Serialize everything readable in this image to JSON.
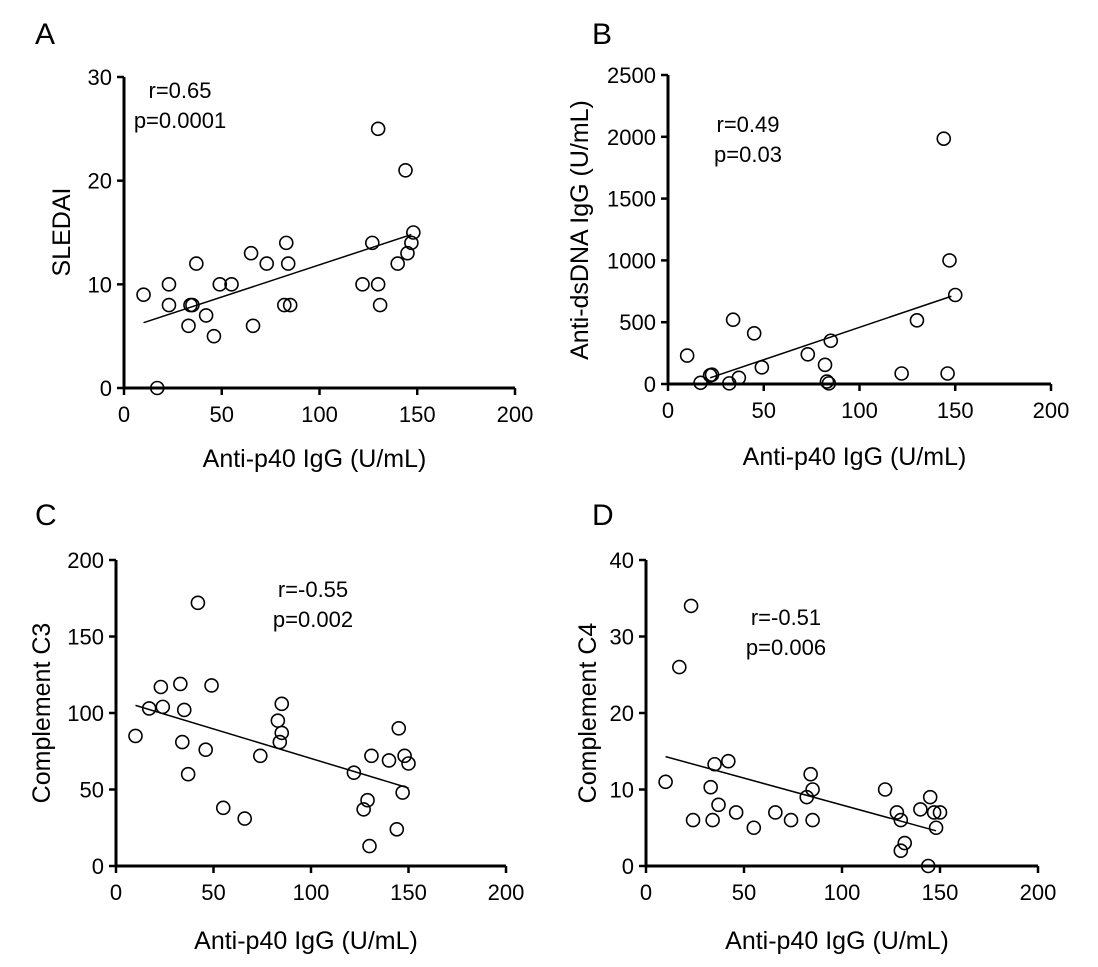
{
  "chart_data": [
    {
      "panel": "A",
      "type": "scatter",
      "xlabel": "Anti-p40 IgG (U/mL)",
      "ylabel": "SLEDAI",
      "xlim": [
        0,
        200
      ],
      "ylim": [
        0,
        30
      ],
      "xticks": [
        0,
        50,
        100,
        150,
        200
      ],
      "yticks": [
        0,
        10,
        20,
        30
      ],
      "annotation": [
        "r=0.65",
        "p=0.0001"
      ],
      "points": [
        [
          10,
          9
        ],
        [
          17,
          0
        ],
        [
          23,
          10
        ],
        [
          23,
          8
        ],
        [
          33,
          6
        ],
        [
          34,
          8
        ],
        [
          35,
          8
        ],
        [
          37,
          12
        ],
        [
          42,
          7
        ],
        [
          46,
          5
        ],
        [
          49,
          10
        ],
        [
          55,
          10
        ],
        [
          65,
          13
        ],
        [
          66,
          6
        ],
        [
          73,
          12
        ],
        [
          82,
          8
        ],
        [
          83,
          14
        ],
        [
          84,
          12
        ],
        [
          85,
          8
        ],
        [
          122,
          10
        ],
        [
          127,
          14
        ],
        [
          130,
          10
        ],
        [
          130,
          25
        ],
        [
          131,
          8
        ],
        [
          140,
          12
        ],
        [
          144,
          21
        ],
        [
          145,
          13
        ],
        [
          147,
          14
        ],
        [
          148,
          15
        ]
      ],
      "fit_line": [
        [
          10,
          6.3
        ],
        [
          147,
          14.8
        ]
      ]
    },
    {
      "panel": "B",
      "type": "scatter",
      "xlabel": "Anti-p40 IgG (U/mL)",
      "ylabel": "Anti-dsDNA IgG (U/mL)",
      "xlim": [
        0,
        200
      ],
      "ylim": [
        0,
        2500
      ],
      "xticks": [
        0,
        50,
        100,
        150,
        200
      ],
      "yticks": [
        0,
        500,
        1000,
        1500,
        2000,
        2500
      ],
      "annotation": [
        "r=0.49",
        "p=0.03"
      ],
      "points": [
        [
          10,
          230
        ],
        [
          17,
          10
        ],
        [
          22,
          70
        ],
        [
          23,
          75
        ],
        [
          32,
          5
        ],
        [
          34,
          520
        ],
        [
          37,
          50
        ],
        [
          45,
          410
        ],
        [
          49,
          135
        ],
        [
          73,
          240
        ],
        [
          82,
          155
        ],
        [
          83,
          20
        ],
        [
          84,
          5
        ],
        [
          85,
          350
        ],
        [
          122,
          85
        ],
        [
          130,
          515
        ],
        [
          144,
          1985
        ],
        [
          146,
          85
        ],
        [
          147,
          1000
        ],
        [
          150,
          720
        ]
      ],
      "fit_line": [
        [
          22,
          50
        ],
        [
          148,
          710
        ]
      ]
    },
    {
      "panel": "C",
      "type": "scatter",
      "xlabel": "Anti-p40 IgG (U/mL)",
      "ylabel": "Complement C3",
      "xlim": [
        0,
        200
      ],
      "ylim": [
        0,
        200
      ],
      "xticks": [
        0,
        50,
        100,
        150,
        200
      ],
      "yticks": [
        0,
        50,
        100,
        150,
        200
      ],
      "annotation": [
        "r=-0.55",
        "p=0.002"
      ],
      "points": [
        [
          10,
          85
        ],
        [
          17,
          103
        ],
        [
          23,
          117
        ],
        [
          24,
          104
        ],
        [
          33,
          119
        ],
        [
          34,
          81
        ],
        [
          35,
          102
        ],
        [
          37,
          60
        ],
        [
          42,
          172
        ],
        [
          46,
          76
        ],
        [
          49,
          118
        ],
        [
          55,
          38
        ],
        [
          66,
          31
        ],
        [
          74,
          72
        ],
        [
          83,
          95
        ],
        [
          84,
          81
        ],
        [
          85,
          106
        ],
        [
          85,
          87
        ],
        [
          122,
          61
        ],
        [
          127,
          37
        ],
        [
          129,
          43
        ],
        [
          130,
          13
        ],
        [
          131,
          72
        ],
        [
          140,
          69
        ],
        [
          145,
          90
        ],
        [
          144,
          24
        ],
        [
          147,
          48
        ],
        [
          148,
          72
        ],
        [
          150,
          67
        ]
      ],
      "fit_line": [
        [
          10,
          105
        ],
        [
          150,
          51
        ]
      ]
    },
    {
      "panel": "D",
      "type": "scatter",
      "xlabel": "Anti-p40 IgG (U/mL)",
      "ylabel": "Complement C4",
      "xlim": [
        0,
        200
      ],
      "ylim": [
        0,
        40
      ],
      "xticks": [
        0,
        50,
        100,
        150,
        200
      ],
      "yticks": [
        0,
        10,
        20,
        30,
        40
      ],
      "annotation": [
        "r=-0.51",
        "p=0.006"
      ],
      "points": [
        [
          10,
          11
        ],
        [
          17,
          26
        ],
        [
          23,
          34
        ],
        [
          24,
          6
        ],
        [
          33,
          10.3
        ],
        [
          34,
          6
        ],
        [
          35,
          13.3
        ],
        [
          37,
          8
        ],
        [
          42,
          13.7
        ],
        [
          46,
          7
        ],
        [
          55,
          5
        ],
        [
          66,
          7
        ],
        [
          74,
          6
        ],
        [
          82,
          9
        ],
        [
          84,
          12
        ],
        [
          85,
          10
        ],
        [
          85,
          6
        ],
        [
          122,
          10
        ],
        [
          128,
          7
        ],
        [
          130,
          6
        ],
        [
          130,
          2
        ],
        [
          132,
          3
        ],
        [
          140,
          7.4
        ],
        [
          144,
          0
        ],
        [
          145,
          9
        ],
        [
          147,
          7
        ],
        [
          148,
          5
        ],
        [
          150,
          7
        ]
      ],
      "fit_line": [
        [
          10,
          14.3
        ],
        [
          148,
          4.6
        ]
      ]
    }
  ]
}
